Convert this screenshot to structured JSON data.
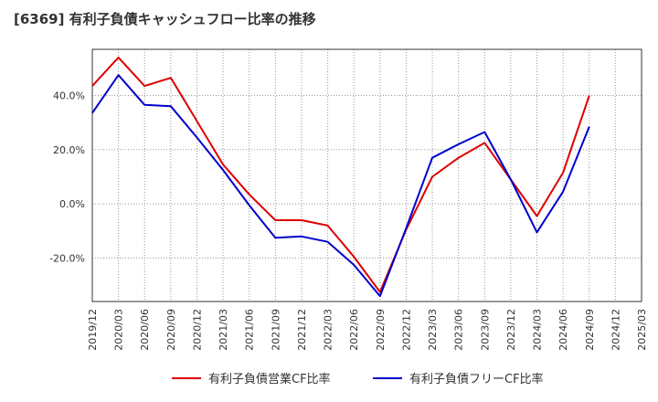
{
  "title": "[6369]  有利子負債キャッシュフロー比率の推移",
  "chart_data": {
    "type": "line",
    "title": "[6369]  有利子負債キャッシュフロー比率の推移",
    "xlabel": "",
    "ylabel": "",
    "x": [
      "2019/12",
      "2020/03",
      "2020/06",
      "2020/09",
      "2020/12",
      "2021/03",
      "2021/06",
      "2021/09",
      "2021/12",
      "2022/03",
      "2022/06",
      "2022/09",
      "2022/12",
      "2023/03",
      "2023/06",
      "2023/09",
      "2023/12",
      "2024/03",
      "2024/06",
      "2024/09",
      "2024/12",
      "2025/03"
    ],
    "ylim": [
      -36,
      57
    ],
    "yticks": [
      40,
      20,
      0,
      -20
    ],
    "ytick_labels": [
      "40.0%",
      "20.0%",
      "0.0%",
      "-20.0%"
    ],
    "grid": true,
    "legend_position": "bottom",
    "series": [
      {
        "name": "有利子負債営業CF比率",
        "color": "#dd0000",
        "values": [
          43.5,
          54.0,
          43.5,
          46.5,
          30.5,
          14.5,
          3.5,
          -6.0,
          -6.0,
          -8.0,
          -19.5,
          -32.5,
          -9.5,
          10.0,
          17.0,
          22.5,
          9.0,
          -4.5,
          11.5,
          40.0,
          null,
          null
        ]
      },
      {
        "name": "有利子負債フリーCF比率",
        "color": "#0000cc",
        "values": [
          33.5,
          47.5,
          36.5,
          36.0,
          24.5,
          12.5,
          -0.5,
          -12.5,
          -12.0,
          -14.0,
          -22.5,
          -34.0,
          -9.0,
          17.0,
          22.0,
          26.5,
          9.0,
          -10.5,
          4.5,
          28.5,
          null,
          null
        ]
      }
    ]
  }
}
